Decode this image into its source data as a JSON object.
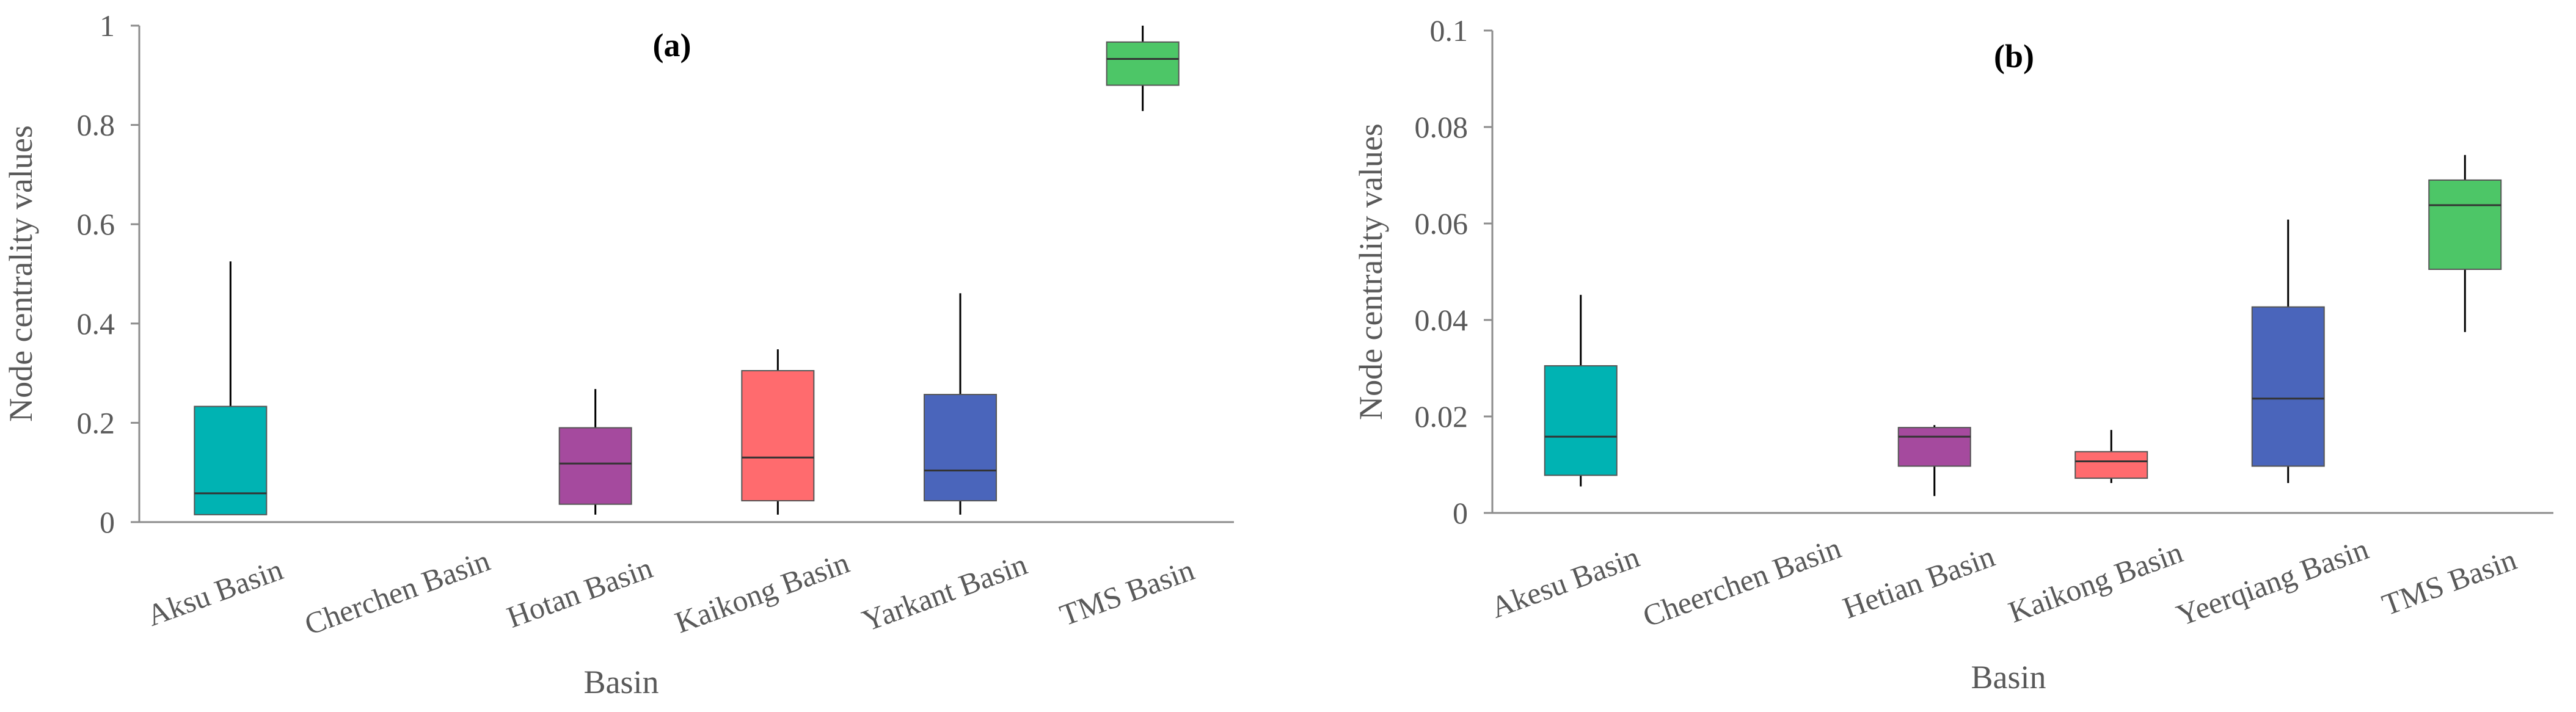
{
  "chart_data": [
    {
      "type": "box",
      "title": "(a)",
      "xlabel": "Basin",
      "ylabel": "Node centrality values",
      "ylim": [
        0,
        1
      ],
      "yticks": [
        "0",
        "0.2",
        "0.4",
        "0.6",
        "0.8",
        "1"
      ],
      "grid": false,
      "categories": [
        "Aksu Basin",
        "Cherchen Basin",
        "Hotan Basin",
        "Kaikong Basin",
        "Yarkant Basin",
        "TMS Basin"
      ],
      "boxes": [
        {
          "min": 0.015,
          "q1": 0.015,
          "median": 0.058,
          "q3": 0.233,
          "max": 0.525,
          "color": "#00B3B3"
        },
        null,
        {
          "min": 0.015,
          "q1": 0.036,
          "median": 0.118,
          "q3": 0.19,
          "max": 0.268,
          "color": "#A54A9E"
        },
        {
          "min": 0.015,
          "q1": 0.043,
          "median": 0.13,
          "q3": 0.305,
          "max": 0.348,
          "color": "#FF6B6E"
        },
        {
          "min": 0.015,
          "q1": 0.043,
          "median": 0.104,
          "q3": 0.257,
          "max": 0.461,
          "color": "#4A65BB"
        },
        {
          "min": 0.828,
          "q1": 0.88,
          "median": 0.933,
          "q3": 0.967,
          "max": 1.0,
          "color": "#4DC667"
        }
      ]
    },
    {
      "type": "box",
      "title": "(b)",
      "xlabel": "Basin",
      "ylabel": "Node centrality values",
      "ylim": [
        0,
        0.1
      ],
      "yticks": [
        "0",
        "0.02",
        "0.04",
        "0.06",
        "0.08",
        "0.1"
      ],
      "grid": false,
      "categories": [
        "Akesu Basin",
        "Cheerchen Basin",
        "Hetian Basin",
        "Kaikong Basin",
        "Yeerqiang Basin",
        "TMS Basin"
      ],
      "boxes": [
        {
          "min": 0.0055,
          "q1": 0.0078,
          "median": 0.0158,
          "q3": 0.0305,
          "max": 0.0452,
          "color": "#00B3B3"
        },
        null,
        {
          "min": 0.0035,
          "q1": 0.0097,
          "median": 0.0158,
          "q3": 0.0177,
          "max": 0.0182,
          "color": "#A54A9E"
        },
        {
          "min": 0.0062,
          "q1": 0.0072,
          "median": 0.0107,
          "q3": 0.0127,
          "max": 0.0172,
          "color": "#FF6B6E"
        },
        {
          "min": 0.0062,
          "q1": 0.0097,
          "median": 0.0237,
          "q3": 0.0427,
          "max": 0.0608,
          "color": "#4A65BB"
        },
        {
          "min": 0.0375,
          "q1": 0.0505,
          "median": 0.0638,
          "q3": 0.069,
          "max": 0.0742,
          "color": "#4DC667"
        }
      ]
    }
  ]
}
